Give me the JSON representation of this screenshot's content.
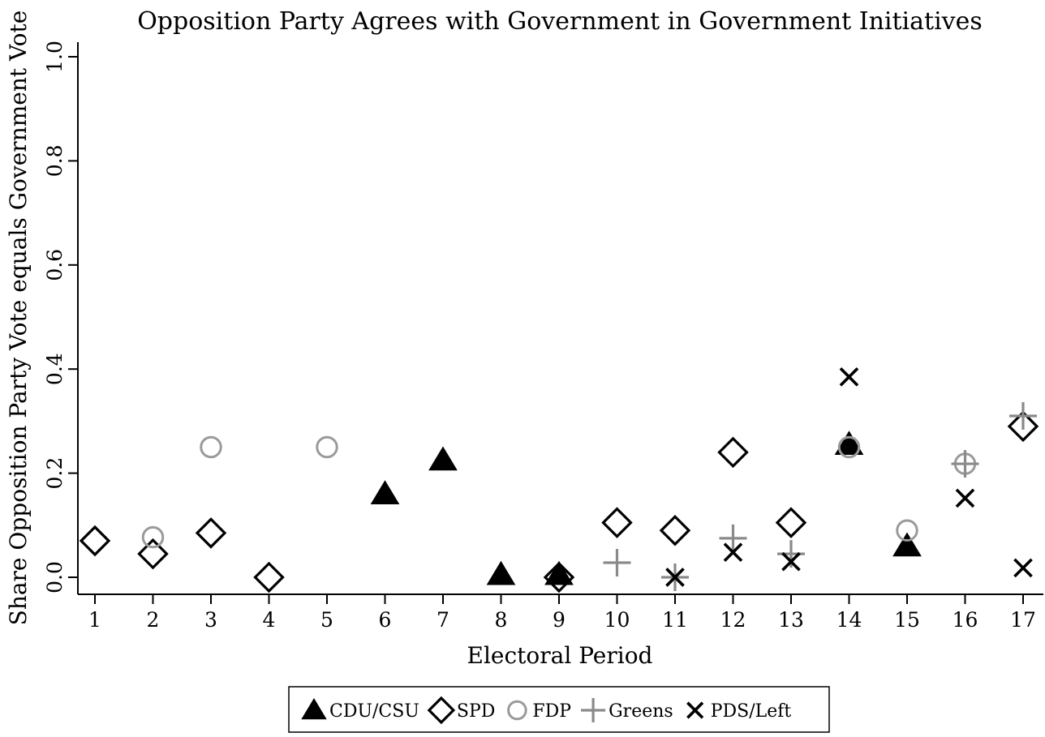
{
  "chart_data": {
    "type": "scatter",
    "title": "Opposition Party Agrees with Government in Government Initiatives",
    "xlabel": "Electoral Period",
    "ylabel": "Share Opposition Party Vote equals Government Vote",
    "xlim": [
      1,
      17
    ],
    "ylim": [
      0,
      1
    ],
    "x_ticks": [
      "1",
      "2",
      "3",
      "4",
      "5",
      "6",
      "7",
      "8",
      "9",
      "10",
      "11",
      "12",
      "13",
      "14",
      "15",
      "16",
      "17"
    ],
    "y_ticks": [
      "0.0",
      "0.2",
      "0.4",
      "0.6",
      "0.8",
      "1.0"
    ],
    "grid": false,
    "legend_position": "bottom",
    "series": [
      {
        "name": "CDU/CSU",
        "marker": "filled-triangle",
        "color": "#000000",
        "points": [
          {
            "x": 6,
            "y": 0.16
          },
          {
            "x": 7,
            "y": 0.225
          },
          {
            "x": 8,
            "y": 0.005
          },
          {
            "x": 9,
            "y": 0.005
          },
          {
            "x": 14,
            "y": 0.255
          },
          {
            "x": 15,
            "y": 0.06
          }
        ]
      },
      {
        "name": "SPD",
        "marker": "hollow-diamond",
        "color": "#000000",
        "points": [
          {
            "x": 1,
            "y": 0.07
          },
          {
            "x": 2,
            "y": 0.045
          },
          {
            "x": 3,
            "y": 0.085
          },
          {
            "x": 4,
            "y": 0.0
          },
          {
            "x": 9,
            "y": 0.0
          },
          {
            "x": 10,
            "y": 0.105
          },
          {
            "x": 11,
            "y": 0.09
          },
          {
            "x": 12,
            "y": 0.24
          },
          {
            "x": 13,
            "y": 0.105
          },
          {
            "x": 17,
            "y": 0.29
          }
        ]
      },
      {
        "name": "FDP",
        "marker": "hollow-circle",
        "color": "#9a9a9a",
        "points": [
          {
            "x": 2,
            "y": 0.077
          },
          {
            "x": 3,
            "y": 0.25
          },
          {
            "x": 5,
            "y": 0.25
          },
          {
            "x": 14,
            "y": 0.25
          },
          {
            "x": 15,
            "y": 0.09
          },
          {
            "x": 16,
            "y": 0.218
          }
        ]
      },
      {
        "name": "Greens",
        "marker": "plus",
        "color": "#8a8a8a",
        "points": [
          {
            "x": 10,
            "y": 0.028
          },
          {
            "x": 11,
            "y": 0.0
          },
          {
            "x": 12,
            "y": 0.075
          },
          {
            "x": 13,
            "y": 0.045
          },
          {
            "x": 16,
            "y": 0.218
          },
          {
            "x": 17,
            "y": 0.31
          }
        ]
      },
      {
        "name": "PDS/Left",
        "marker": "cross",
        "color": "#000000",
        "points": [
          {
            "x": 11,
            "y": 0.0
          },
          {
            "x": 12,
            "y": 0.048
          },
          {
            "x": 13,
            "y": 0.03
          },
          {
            "x": 14,
            "y": 0.385
          },
          {
            "x": 16,
            "y": 0.152
          },
          {
            "x": 17,
            "y": 0.018
          }
        ]
      }
    ]
  }
}
